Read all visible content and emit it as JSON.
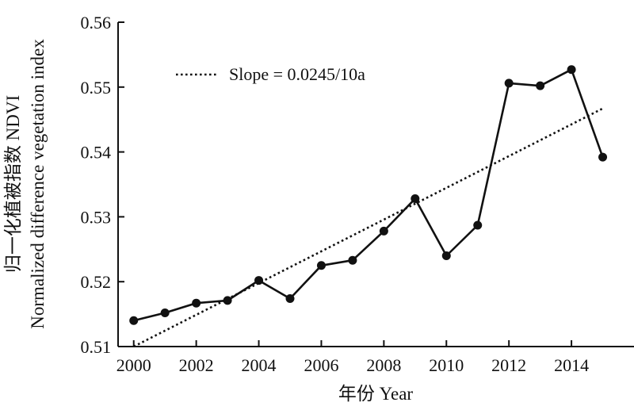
{
  "chart_data": {
    "type": "line",
    "title": "",
    "xlabel": "年份 Year",
    "ylabel_line1": "归一化植被指数 NDVI",
    "ylabel_line2": "Normalized difference vegetation index",
    "xlim": [
      1999.5,
      2016
    ],
    "ylim": [
      0.51,
      0.56
    ],
    "x_ticks": [
      2000,
      2002,
      2004,
      2006,
      2008,
      2010,
      2012,
      2014
    ],
    "y_ticks": [
      0.51,
      0.52,
      0.53,
      0.54,
      0.55,
      0.56
    ],
    "y_tick_labels": [
      "0.51",
      "0.52",
      "0.53",
      "0.54",
      "0.55",
      "0.56"
    ],
    "grid": false,
    "legend_position": "top-left",
    "series": [
      {
        "x": [
          2000,
          2001,
          2002,
          2003,
          2004,
          2005,
          2006,
          2007,
          2008,
          2009,
          2010,
          2011,
          2012,
          2013,
          2014,
          2015
        ],
        "values": [
          0.514,
          0.5152,
          0.5167,
          0.5171,
          0.5202,
          0.5174,
          0.5225,
          0.5233,
          0.5278,
          0.5328,
          0.524,
          0.5287,
          0.5506,
          0.5502,
          0.5527,
          0.5392
        ],
        "color": "#111111"
      }
    ],
    "trendline": {
      "label": "Slope = 0.0245/10a",
      "start": [
        2000,
        0.51
      ],
      "end": [
        2015,
        0.5467
      ],
      "style": "dotted"
    }
  }
}
